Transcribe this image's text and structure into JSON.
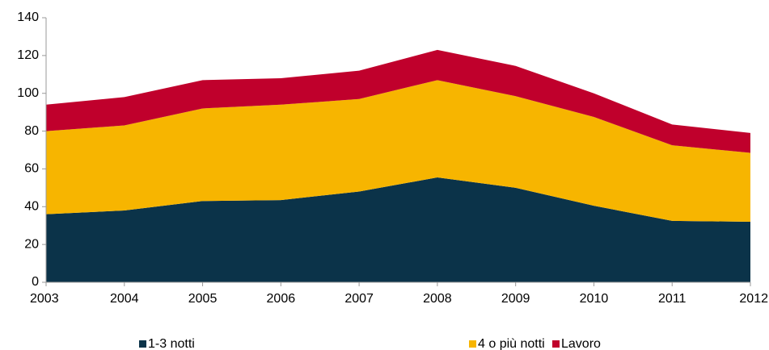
{
  "chart_data": {
    "type": "stacked_area",
    "x": [
      2003,
      2004,
      2005,
      2006,
      2007,
      2008,
      2009,
      2010,
      2011,
      2012
    ],
    "series": [
      {
        "name": "1-3 notti",
        "color": "#0b3349",
        "values": [
          36,
          38,
          43,
          43.5,
          48,
          55.5,
          50,
          40.5,
          32.5,
          32
        ]
      },
      {
        "name": "4 o più notti",
        "color": "#f7b500",
        "values": [
          44,
          45,
          49,
          50.5,
          49,
          51.5,
          48.5,
          47,
          40,
          36.5
        ]
      },
      {
        "name": "Lavoro",
        "color": "#c0002c",
        "values": [
          14,
          15,
          15,
          14,
          15,
          16,
          16,
          12.5,
          11,
          10.5
        ]
      }
    ],
    "xlim": [
      2003,
      2012
    ],
    "xticks": [
      2003,
      2004,
      2005,
      2006,
      2007,
      2008,
      2009,
      2010,
      2011,
      2012
    ],
    "ylim": [
      0,
      140
    ],
    "yticks": [
      0,
      20,
      40,
      60,
      80,
      100,
      120,
      140
    ],
    "grid": false,
    "legend": "bottom"
  }
}
